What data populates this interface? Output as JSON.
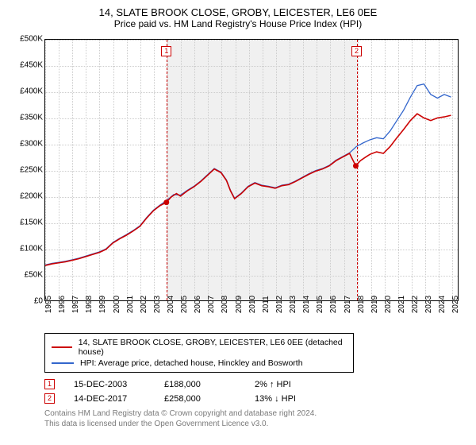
{
  "title": "14, SLATE BROOK CLOSE, GROBY, LEICESTER, LE6 0EE",
  "subtitle": "Price paid vs. HM Land Registry's House Price Index (HPI)",
  "chart": {
    "type": "line",
    "background_color": "#ffffff",
    "grid_color": "#cccccc",
    "shade_color": "#f0f0f0",
    "border_color": "#000000",
    "xlim": [
      1995,
      2025.5
    ],
    "ylim": [
      0,
      500000
    ],
    "ytick_step": 50000,
    "y_ticks": [
      "£0",
      "£50K",
      "£100K",
      "£150K",
      "£200K",
      "£250K",
      "£300K",
      "£350K",
      "£400K",
      "£450K",
      "£500K"
    ],
    "x_ticks": [
      1995,
      1996,
      1997,
      1998,
      1999,
      2000,
      2001,
      2002,
      2003,
      2004,
      2005,
      2006,
      2007,
      2008,
      2009,
      2010,
      2011,
      2012,
      2013,
      2014,
      2015,
      2016,
      2017,
      2018,
      2019,
      2020,
      2021,
      2022,
      2023,
      2024,
      2025
    ],
    "shaded_ranges": [
      [
        2003.96,
        2017.96
      ]
    ],
    "markers": [
      {
        "id": "1",
        "x": 2003.96,
        "y": 188000,
        "label": "1"
      },
      {
        "id": "2",
        "x": 2017.96,
        "y": 258000,
        "label": "2"
      }
    ],
    "marker_color": "#cc0000",
    "series": [
      {
        "name": "14, SLATE BROOK CLOSE, GROBY, LEICESTER, LE6 0EE (detached house)",
        "color": "#cc0000",
        "line_width": 1.6,
        "data": [
          [
            1995,
            67000
          ],
          [
            1995.5,
            70000
          ],
          [
            1996,
            72000
          ],
          [
            1996.5,
            74000
          ],
          [
            1997,
            77000
          ],
          [
            1997.5,
            80000
          ],
          [
            1998,
            84000
          ],
          [
            1998.5,
            88000
          ],
          [
            1999,
            92000
          ],
          [
            1999.5,
            98000
          ],
          [
            2000,
            110000
          ],
          [
            2000.5,
            118000
          ],
          [
            2001,
            125000
          ],
          [
            2001.5,
            133000
          ],
          [
            2002,
            142000
          ],
          [
            2002.5,
            158000
          ],
          [
            2003,
            172000
          ],
          [
            2003.5,
            182000
          ],
          [
            2003.96,
            188000
          ],
          [
            2004.3,
            198000
          ],
          [
            2004.7,
            205000
          ],
          [
            2005,
            200000
          ],
          [
            2005.5,
            210000
          ],
          [
            2006,
            218000
          ],
          [
            2006.5,
            228000
          ],
          [
            2007,
            240000
          ],
          [
            2007.5,
            252000
          ],
          [
            2008,
            245000
          ],
          [
            2008.4,
            230000
          ],
          [
            2008.7,
            210000
          ],
          [
            2009,
            195000
          ],
          [
            2009.5,
            205000
          ],
          [
            2010,
            218000
          ],
          [
            2010.5,
            225000
          ],
          [
            2011,
            220000
          ],
          [
            2011.5,
            218000
          ],
          [
            2012,
            215000
          ],
          [
            2012.5,
            220000
          ],
          [
            2013,
            222000
          ],
          [
            2013.5,
            228000
          ],
          [
            2014,
            235000
          ],
          [
            2014.5,
            242000
          ],
          [
            2015,
            248000
          ],
          [
            2015.5,
            252000
          ],
          [
            2016,
            258000
          ],
          [
            2016.5,
            268000
          ],
          [
            2017,
            275000
          ],
          [
            2017.5,
            282000
          ],
          [
            2017.96,
            258000
          ],
          [
            2018.3,
            268000
          ],
          [
            2018.7,
            275000
          ],
          [
            2019,
            280000
          ],
          [
            2019.5,
            285000
          ],
          [
            2020,
            282000
          ],
          [
            2020.5,
            295000
          ],
          [
            2021,
            312000
          ],
          [
            2021.5,
            328000
          ],
          [
            2022,
            345000
          ],
          [
            2022.5,
            358000
          ],
          [
            2023,
            350000
          ],
          [
            2023.5,
            345000
          ],
          [
            2024,
            350000
          ],
          [
            2024.5,
            352000
          ],
          [
            2025,
            355000
          ]
        ]
      },
      {
        "name": "HPI: Average price, detached house, Hinckley and Bosworth",
        "color": "#3366cc",
        "line_width": 1.3,
        "data": [
          [
            1995,
            68000
          ],
          [
            1995.5,
            71000
          ],
          [
            1996,
            73000
          ],
          [
            1996.5,
            75000
          ],
          [
            1997,
            78000
          ],
          [
            1997.5,
            81000
          ],
          [
            1998,
            85000
          ],
          [
            1998.5,
            89000
          ],
          [
            1999,
            93000
          ],
          [
            1999.5,
            99000
          ],
          [
            2000,
            111000
          ],
          [
            2000.5,
            119000
          ],
          [
            2001,
            126000
          ],
          [
            2001.5,
            134000
          ],
          [
            2002,
            143000
          ],
          [
            2002.5,
            159000
          ],
          [
            2003,
            173000
          ],
          [
            2003.5,
            183000
          ],
          [
            2004,
            192000
          ],
          [
            2004.5,
            203000
          ],
          [
            2005,
            202000
          ],
          [
            2005.5,
            211000
          ],
          [
            2006,
            219000
          ],
          [
            2006.5,
            229000
          ],
          [
            2007,
            241000
          ],
          [
            2007.5,
            253000
          ],
          [
            2008,
            246000
          ],
          [
            2008.4,
            231000
          ],
          [
            2008.7,
            211000
          ],
          [
            2009,
            196000
          ],
          [
            2009.5,
            206000
          ],
          [
            2010,
            219000
          ],
          [
            2010.5,
            226000
          ],
          [
            2011,
            221000
          ],
          [
            2011.5,
            219000
          ],
          [
            2012,
            216000
          ],
          [
            2012.5,
            221000
          ],
          [
            2013,
            223000
          ],
          [
            2013.5,
            229000
          ],
          [
            2014,
            236000
          ],
          [
            2014.5,
            243000
          ],
          [
            2015,
            249000
          ],
          [
            2015.5,
            253000
          ],
          [
            2016,
            259000
          ],
          [
            2016.5,
            269000
          ],
          [
            2017,
            276000
          ],
          [
            2017.5,
            283000
          ],
          [
            2018,
            295000
          ],
          [
            2018.5,
            302000
          ],
          [
            2019,
            308000
          ],
          [
            2019.5,
            312000
          ],
          [
            2020,
            310000
          ],
          [
            2020.5,
            325000
          ],
          [
            2021,
            345000
          ],
          [
            2021.5,
            365000
          ],
          [
            2022,
            390000
          ],
          [
            2022.5,
            412000
          ],
          [
            2023,
            415000
          ],
          [
            2023.5,
            395000
          ],
          [
            2024,
            388000
          ],
          [
            2024.5,
            395000
          ],
          [
            2025,
            390000
          ]
        ]
      }
    ],
    "label_fontsize": 10
  },
  "legend": {
    "items": [
      {
        "color": "#cc0000",
        "label": "14, SLATE BROOK CLOSE, GROBY, LEICESTER, LE6 0EE (detached house)"
      },
      {
        "color": "#3366cc",
        "label": "HPI: Average price, detached house, Hinckley and Bosworth"
      }
    ]
  },
  "data_rows": [
    {
      "marker": "1",
      "date": "15-DEC-2003",
      "price": "£188,000",
      "delta": "2% ↑ HPI"
    },
    {
      "marker": "2",
      "date": "14-DEC-2017",
      "price": "£258,000",
      "delta": "13% ↓ HPI"
    }
  ],
  "footer": {
    "line1": "Contains HM Land Registry data © Crown copyright and database right 2024.",
    "line2": "This data is licensed under the Open Government Licence v3.0."
  }
}
